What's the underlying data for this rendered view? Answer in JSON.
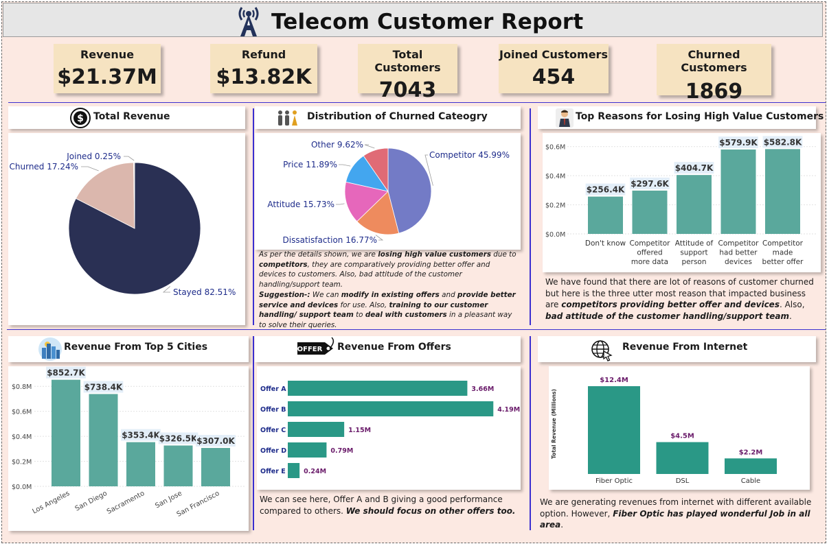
{
  "header": {
    "title": "Telecom Customer Report"
  },
  "kpis": [
    {
      "label": "Revenue",
      "value": "$21.37M"
    },
    {
      "label": "Refund",
      "value": "$13.82K"
    },
    {
      "label": "Total Customers",
      "value": "7043"
    },
    {
      "label": "Joined Customers",
      "value": "454"
    },
    {
      "label": "Churned Customers",
      "value": "1869"
    }
  ],
  "panels": {
    "total_revenue": {
      "title": "Total Revenue"
    },
    "churn_category": {
      "title": "Distribution of Churned Cateogry",
      "para1": {
        "t1": "As per the details shown, we are ",
        "b1": "losing high value customers",
        "t2": " due to ",
        "b2": "competitors",
        "t3": ", they are comparatively providing better offer and devices to customers.  Also, bad attitude of the customer handling/support team."
      },
      "para2": {
        "b1": "Suggestion-:",
        "t1": " We can ",
        "b2": "modify in existing offers",
        "t2": " and ",
        "b3": "provide better service and devices",
        "t3": " for use. Also, ",
        "b4": "training to our customer handling/ support team",
        "t4": " to ",
        "b5": "deal with customers",
        "t5": " in a pleasant way to solve their queries."
      }
    },
    "top_reasons": {
      "title": "Top Reasons for Losing High Value Customers",
      "desc": {
        "t1": "We have found that there are lot of reasons of customer churned but here is the three utter most reason that impacted business are ",
        "b1": "competitors providing better offer and devices",
        "t2": ".  Also, ",
        "b2": "bad attitude of the customer handling/support team",
        "t3": "."
      }
    },
    "top_cities": {
      "title": "Revenue From Top 5 Cities"
    },
    "offers": {
      "title": "Revenue From Offers",
      "icon_text": "OFFER",
      "desc": {
        "t1": "We can see here, Offer A and B giving a good performance compared to others. ",
        "b1": "We should focus on other offers too."
      }
    },
    "internet": {
      "title": "Revenue From Internet",
      "desc": {
        "t1": "We are generating revenues from internet with different available option. However, ",
        "b1": "Fiber Optic has played wonderful Job in all area",
        "t2": "."
      }
    }
  },
  "colors": {
    "navy": "#2a3054",
    "pink": "#dbb7ad",
    "teal_bar": "#5aa89c",
    "teal_dark": "#2a9886",
    "label_navy": "#1d2b8a",
    "offer_value": "#6a1b6a"
  },
  "chart_data": [
    {
      "type": "pie",
      "title": "Total Revenue",
      "categories": [
        "Stayed",
        "Churned",
        "Joined"
      ],
      "values": [
        82.51,
        17.24,
        0.25
      ],
      "labels": [
        "Stayed 82.51%",
        "Churned 17.24%",
        "Joined 0.25%"
      ],
      "colors": [
        "#2a3054",
        "#dbb7ad",
        "#e7dcd6"
      ]
    },
    {
      "type": "pie",
      "title": "Distribution of Churned Cateogry",
      "categories": [
        "Competitor",
        "Dissatisfaction",
        "Attitude",
        "Price",
        "Other"
      ],
      "values": [
        45.99,
        16.77,
        15.73,
        11.89,
        9.62
      ],
      "labels": [
        "Competitor 45.99%",
        "Dissatisfaction 16.77%",
        "Attitude 15.73%",
        "Price 11.89%",
        "Other 9.62%"
      ],
      "colors": [
        "#737bc6",
        "#ee8b5e",
        "#e667bb",
        "#43a6ef",
        "#e06b76"
      ]
    },
    {
      "type": "bar",
      "title": "Top Reasons for Losing High Value Customers",
      "categories": [
        [
          "Don't know"
        ],
        [
          "Competitor",
          "offered",
          "more data"
        ],
        [
          "Attitude of",
          "support",
          "person"
        ],
        [
          "Competitor",
          "had better",
          "devices"
        ],
        [
          "Competitor",
          "made",
          "better offer"
        ]
      ],
      "values": [
        256.4,
        297.6,
        404.7,
        579.9,
        582.8
      ],
      "data_labels": [
        "$256.4K",
        "$297.6K",
        "$404.7K",
        "$579.9K",
        "$582.8K"
      ],
      "yticks": [
        "$0.0M",
        "$0.2M",
        "$0.4M",
        "$0.6M"
      ],
      "ylim": [
        0,
        660
      ]
    },
    {
      "type": "bar",
      "title": "Revenue From Top 5 Cities",
      "categories": [
        "Los Angeles",
        "San Diego",
        "Sacramento",
        "San Jose",
        "San Francisco"
      ],
      "values": [
        852.7,
        738.4,
        353.4,
        326.5,
        307.0
      ],
      "data_labels": [
        "$852.7K",
        "$738.4K",
        "$353.4K",
        "$326.5K",
        "$307.0K"
      ],
      "yticks": [
        "$0.0M",
        "$0.2M",
        "$0.4M",
        "$0.6M",
        "$0.8M"
      ],
      "ylim": [
        0,
        900
      ]
    },
    {
      "type": "bar",
      "orientation": "horizontal",
      "title": "Revenue From Offers",
      "categories": [
        "Offer A",
        "Offer B",
        "Offer C",
        "Offer D",
        "Offer E"
      ],
      "values": [
        3.66,
        4.19,
        1.15,
        0.79,
        0.24
      ],
      "data_labels": [
        "3.66M",
        "4.19M",
        "1.15M",
        "0.79M",
        "0.24M"
      ],
      "xlim": [
        0,
        4.2
      ]
    },
    {
      "type": "bar",
      "title": "Revenue From Internet",
      "ylabel": "Total Revenue (Millions)",
      "categories": [
        "Fiber Optic",
        "DSL",
        "Cable"
      ],
      "values": [
        12.4,
        4.5,
        2.2
      ],
      "data_labels": [
        "$12.4M",
        "$4.5M",
        "$2.2M"
      ],
      "ylim": [
        0,
        12.4
      ]
    }
  ]
}
